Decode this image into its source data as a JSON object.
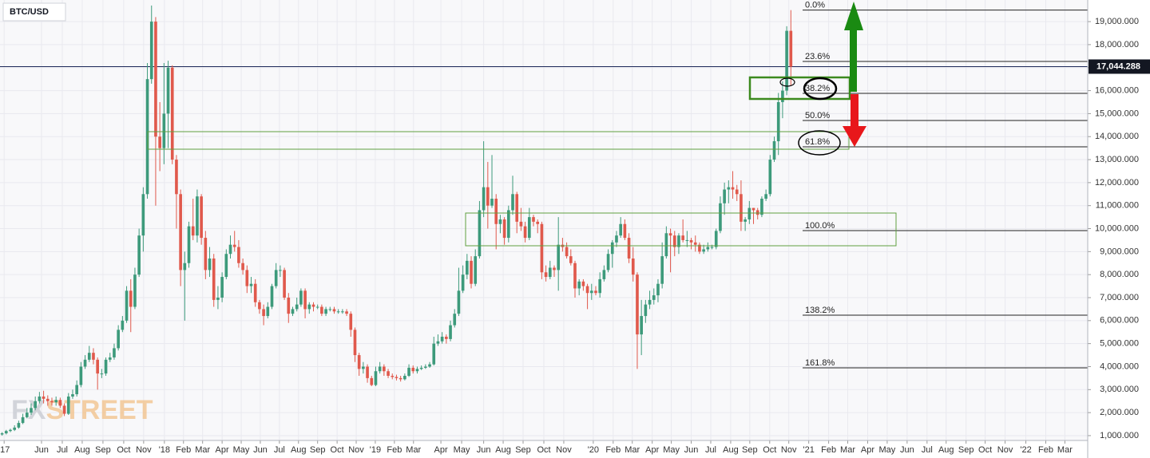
{
  "chart_data": {
    "type": "candlestick",
    "title": "BTC/USD",
    "watermark": [
      "FX",
      "STREET"
    ],
    "up_color": "#3d9a7b",
    "down_color": "#e0594c",
    "grid": true,
    "open": [
      1050,
      1100,
      1200,
      1250,
      1350,
      1550,
      1800,
      2000,
      2200,
      2500,
      2700,
      2600,
      2500,
      2450,
      2550,
      2300,
      1950,
      2700,
      2800,
      3200,
      4000,
      4300,
      4600,
      4300,
      3700,
      3700,
      4300,
      4400,
      4800,
      5600,
      6000,
      7300,
      6600,
      8000,
      9700,
      11500,
      16500,
      19000,
      14000,
      13500,
      15000,
      17000,
      13000,
      11500,
      8200,
      8500,
      10100,
      9700,
      11400,
      9600,
      8200,
      8700,
      6900,
      7000,
      7900,
      8900,
      9300,
      9200,
      8500,
      8200,
      7500,
      7600,
      6800,
      6500,
      6200,
      6600,
      7500,
      8200,
      8200,
      7000,
      6300,
      6500,
      6700,
      7300,
      6500,
      6700,
      6600,
      6600,
      6300,
      6500,
      6500,
      6400,
      6400,
      6400,
      6300,
      5600,
      4500,
      3900,
      4000,
      3500,
      3200,
      3800,
      4000,
      3800,
      3600,
      3550,
      3500,
      3450,
      3600,
      3950,
      3800,
      3900,
      3950,
      4000,
      4100,
      5000,
      5100,
      5300,
      5200,
      5800,
      6300,
      7300,
      8000,
      8600,
      7600,
      8800,
      10800,
      11800,
      11000,
      11300,
      10200,
      10400,
      9600,
      10800,
      11500,
      10300,
      10100,
      9600,
      10500,
      10300,
      10200,
      8100,
      7900,
      8300,
      8200,
      9300,
      9200,
      8800,
      8500,
      7400,
      7700,
      7500,
      7200,
      7300,
      7200,
      7800,
      8200,
      8900,
      9400,
      9700,
      10200,
      9600,
      8700,
      8000,
      5400,
      6200,
      6700,
      6900,
      7100,
      7600,
      8800,
      9800,
      9700,
      9200,
      9700,
      9500,
      9500,
      9400,
      9300,
      9000,
      9100,
      9200,
      9200,
      9900,
      11100,
      11700,
      11800,
      11700,
      11500,
      10300,
      10400,
      10900,
      10800,
      10600,
      11300,
      11500,
      13000,
      13800,
      15500,
      16000,
      18600
    ],
    "high": [
      1150,
      1250,
      1300,
      1450,
      1650,
      1950,
      2200,
      2400,
      2700,
      2900,
      2950,
      2750,
      2650,
      2700,
      2650,
      2400,
      2850,
      3000,
      3400,
      4200,
      4500,
      4900,
      4800,
      4400,
      3900,
      4400,
      4600,
      5000,
      5800,
      6200,
      7500,
      7800,
      8300,
      10000,
      11800,
      17200,
      19700,
      19200,
      15500,
      17200,
      17300,
      17100,
      13200,
      11700,
      9000,
      10300,
      11300,
      11700,
      11500,
      9900,
      9200,
      8900,
      7500,
      8100,
      9100,
      9700,
      9900,
      9500,
      8700,
      8400,
      7900,
      7800,
      6900,
      6700,
      6800,
      7600,
      8500,
      8400,
      8300,
      7200,
      6600,
      7000,
      7400,
      7400,
      6800,
      6800,
      6700,
      6700,
      6600,
      6600,
      6600,
      6500,
      6500,
      6500,
      6400,
      5700,
      4600,
      4200,
      4100,
      3600,
      4000,
      4200,
      4100,
      3900,
      3700,
      3650,
      3600,
      3700,
      4100,
      4050,
      4000,
      4050,
      4100,
      4200,
      5300,
      5400,
      5500,
      5400,
      6000,
      6500,
      8300,
      8400,
      8900,
      8800,
      9100,
      11200,
      13800,
      12900,
      13200,
      11500,
      10600,
      10500,
      11000,
      12300,
      11600,
      10900,
      10300,
      10900,
      10600,
      10400,
      10300,
      8400,
      8600,
      8400,
      10500,
      9600,
      9400,
      9100,
      8600,
      7800,
      7800,
      7600,
      7600,
      7500,
      8100,
      8400,
      9100,
      9500,
      9900,
      10500,
      10400,
      9800,
      9200,
      8100,
      6900,
      6900,
      7300,
      7400,
      7800,
      9400,
      10100,
      10000,
      9900,
      9800,
      10400,
      9900,
      9600,
      9700,
      9400,
      9300,
      9400,
      9300,
      10000,
      11400,
      12000,
      12100,
      12500,
      11900,
      12100,
      10500,
      11200,
      10900,
      10900,
      11400,
      11700,
      13200,
      14000,
      15900,
      16400,
      18800,
      19500
    ],
    "low": [
      1000,
      1050,
      1150,
      1200,
      1300,
      1500,
      1750,
      1900,
      2100,
      2400,
      2400,
      2300,
      2300,
      2300,
      2200,
      1850,
      1900,
      2600,
      2700,
      3100,
      3900,
      4200,
      4100,
      3000,
      3500,
      3600,
      4200,
      4300,
      4700,
      5500,
      5900,
      5500,
      6500,
      7900,
      9000,
      11300,
      16300,
      11000,
      12500,
      12800,
      13500,
      12800,
      10000,
      7500,
      6000,
      8300,
      9500,
      9400,
      9300,
      7800,
      7900,
      6600,
      6500,
      6800,
      7800,
      8700,
      9000,
      8300,
      8000,
      7200,
      7200,
      6600,
      6300,
      5800,
      6100,
      6500,
      7400,
      7900,
      6900,
      5900,
      6200,
      6400,
      6600,
      6100,
      6300,
      6400,
      6500,
      6200,
      6200,
      6400,
      6300,
      6300,
      6300,
      6200,
      5300,
      4200,
      3600,
      3700,
      3300,
      3150,
      3150,
      3700,
      3600,
      3500,
      3450,
      3400,
      3350,
      3400,
      3550,
      3700,
      3700,
      3850,
      3900,
      3950,
      4050,
      4900,
      5000,
      5000,
      5100,
      5700,
      6200,
      7200,
      7800,
      7400,
      7500,
      8700,
      10500,
      10000,
      10900,
      9100,
      9800,
      9300,
      9400,
      10600,
      9800,
      9900,
      9400,
      9500,
      10100,
      9800,
      7800,
      7700,
      7800,
      7900,
      7300,
      9000,
      8700,
      8400,
      7000,
      7100,
      7300,
      6500,
      6900,
      7100,
      7000,
      7700,
      8100,
      8300,
      9200,
      9600,
      9500,
      8500,
      7700,
      3900,
      4500,
      5900,
      6500,
      6700,
      6800,
      7400,
      8700,
      8100,
      8800,
      8900,
      9400,
      9200,
      9100,
      9000,
      8900,
      8900,
      9000,
      9100,
      9100,
      9800,
      10600,
      11100,
      11300,
      11200,
      9900,
      9900,
      10200,
      10200,
      10400,
      10500,
      11200,
      11400,
      12900,
      13200,
      14800,
      15800,
      16200
    ],
    "close": [
      1100,
      1200,
      1250,
      1350,
      1550,
      1800,
      2000,
      2200,
      2500,
      2700,
      2600,
      2500,
      2450,
      2550,
      2300,
      1950,
      2700,
      2800,
      3200,
      4000,
      4300,
      4600,
      4300,
      3700,
      3700,
      4300,
      4400,
      4800,
      5600,
      6000,
      7300,
      6600,
      8000,
      9700,
      11500,
      16500,
      19000,
      14000,
      13500,
      15000,
      17000,
      13000,
      11500,
      8200,
      8500,
      10100,
      9700,
      11400,
      9600,
      8200,
      8700,
      6900,
      7000,
      7900,
      8900,
      9300,
      9200,
      8500,
      8200,
      7500,
      7600,
      6800,
      6500,
      6200,
      6600,
      7500,
      8200,
      8200,
      7000,
      6300,
      6500,
      6700,
      7300,
      6500,
      6700,
      6600,
      6600,
      6300,
      6500,
      6500,
      6400,
      6400,
      6400,
      6300,
      5600,
      4500,
      3900,
      4000,
      3500,
      3200,
      3800,
      4000,
      3800,
      3600,
      3550,
      3500,
      3450,
      3600,
      3950,
      3800,
      3900,
      3950,
      4000,
      4100,
      5000,
      5100,
      5300,
      5200,
      5800,
      6300,
      7300,
      8000,
      8600,
      7600,
      8800,
      10800,
      11800,
      11000,
      11300,
      10200,
      10400,
      9600,
      10800,
      11500,
      10300,
      10100,
      9600,
      10500,
      10300,
      10200,
      8100,
      7900,
      8300,
      8200,
      9300,
      9200,
      8800,
      8500,
      7400,
      7700,
      7500,
      7200,
      7300,
      7200,
      7800,
      8200,
      8900,
      9400,
      9700,
      10200,
      9600,
      8700,
      8000,
      5400,
      6200,
      6700,
      6900,
      7100,
      7600,
      8800,
      9800,
      9700,
      9200,
      9700,
      9500,
      9500,
      9400,
      9300,
      9000,
      9100,
      9200,
      9200,
      9900,
      11100,
      11700,
      11800,
      11700,
      11500,
      10300,
      10400,
      10900,
      10800,
      10600,
      11300,
      11500,
      13000,
      13800,
      15500,
      16000,
      18600,
      17044
    ],
    "xlim": [
      0,
      262
    ],
    "xticks": [
      {
        "value": 1.0,
        "label": "'17"
      },
      {
        "value": 10.0,
        "label": "Jun"
      },
      {
        "value": 15.0,
        "label": "Jul"
      },
      {
        "value": 19.8,
        "label": "Aug"
      },
      {
        "value": 24.8,
        "label": "Sep"
      },
      {
        "value": 29.8,
        "label": "Oct"
      },
      {
        "value": 34.6,
        "label": "Nov"
      },
      {
        "value": 39.6,
        "label": "'18"
      },
      {
        "value": 44.2,
        "label": "Feb"
      },
      {
        "value": 48.8,
        "label": "Mar"
      },
      {
        "value": 53.5,
        "label": "Apr"
      },
      {
        "value": 58.1,
        "label": "May"
      },
      {
        "value": 62.7,
        "label": "Jun"
      },
      {
        "value": 67.3,
        "label": "Jul"
      },
      {
        "value": 71.9,
        "label": "Aug"
      },
      {
        "value": 76.5,
        "label": "Sep"
      },
      {
        "value": 81.2,
        "label": "Oct"
      },
      {
        "value": 85.8,
        "label": "Nov"
      },
      {
        "value": 90.4,
        "label": "'19"
      },
      {
        "value": 95.0,
        "label": "Feb"
      },
      {
        "value": 99.6,
        "label": "Mar"
      },
      {
        "value": 106.2,
        "label": "Apr"
      },
      {
        "value": 111.2,
        "label": "May"
      },
      {
        "value": 116.5,
        "label": "Jun"
      },
      {
        "value": 121.2,
        "label": "Aug"
      },
      {
        "value": 126.0,
        "label": "Sep"
      },
      {
        "value": 131.0,
        "label": "Oct"
      },
      {
        "value": 135.8,
        "label": "Nov"
      },
      {
        "value": 142.9,
        "label": "'20"
      },
      {
        "value": 147.7,
        "label": "Feb"
      },
      {
        "value": 152.3,
        "label": "Mar"
      },
      {
        "value": 157.1,
        "label": "Apr"
      },
      {
        "value": 161.7,
        "label": "May"
      },
      {
        "value": 166.5,
        "label": "Jun"
      },
      {
        "value": 171.2,
        "label": "Jul"
      },
      {
        "value": 176.0,
        "label": "Aug"
      },
      {
        "value": 180.6,
        "label": "Sep"
      },
      {
        "value": 185.4,
        "label": "Oct"
      },
      {
        "value": 190.0,
        "label": "Nov"
      },
      {
        "value": 194.8,
        "label": "'21"
      },
      {
        "value": 199.6,
        "label": "Feb"
      },
      {
        "value": 204.2,
        "label": "Mar"
      },
      {
        "value": 209.0,
        "label": "Apr"
      },
      {
        "value": 213.7,
        "label": "May"
      },
      {
        "value": 218.5,
        "label": "Jun"
      },
      {
        "value": 223.3,
        "label": "Jul"
      },
      {
        "value": 227.9,
        "label": "Aug"
      },
      {
        "value": 232.7,
        "label": "Sep"
      },
      {
        "value": 237.3,
        "label": "Oct"
      },
      {
        "value": 242.1,
        "label": "Nov"
      },
      {
        "value": 247.1,
        "label": "'22"
      },
      {
        "value": 251.9,
        "label": "Feb"
      },
      {
        "value": 256.5,
        "label": "Mar"
      }
    ],
    "ylim": [
      790,
      19940
    ],
    "yticks": [
      {
        "value": 1000,
        "label": "1,000.000"
      },
      {
        "value": 2000,
        "label": "2,000.000"
      },
      {
        "value": 3000,
        "label": "3,000.000"
      },
      {
        "value": 4000,
        "label": "4,000.000"
      },
      {
        "value": 5000,
        "label": "5,000.000"
      },
      {
        "value": 6000,
        "label": "6,000.000"
      },
      {
        "value": 7000,
        "label": "7,000.000"
      },
      {
        "value": 8000,
        "label": "8,000.000"
      },
      {
        "value": 9000,
        "label": "9,000.000"
      },
      {
        "value": 10000,
        "label": "10,000.000"
      },
      {
        "value": 11000,
        "label": "11,000.000"
      },
      {
        "value": 12000,
        "label": "12,000.000"
      },
      {
        "value": 13000,
        "label": "13,000.000"
      },
      {
        "value": 14000,
        "label": "14,000.000"
      },
      {
        "value": 15000,
        "label": "15,000.000"
      },
      {
        "value": 16000,
        "label": "16,000.000"
      },
      {
        "value": 17000,
        "label": "17,000.000"
      },
      {
        "value": 18000,
        "label": "18,000.000"
      },
      {
        "value": 19000,
        "label": "19,000.000"
      }
    ],
    "last_price": {
      "value": 17044.288,
      "label": "17,044.288"
    },
    "fib_levels": [
      {
        "value": 19500,
        "label": "0.0%"
      },
      {
        "value": 17268,
        "label": "23.6%"
      },
      {
        "value": 15880,
        "label": "38.2%"
      },
      {
        "value": 14700,
        "label": "50.0%"
      },
      {
        "value": 13556,
        "label": "61.8%"
      },
      {
        "value": 9914,
        "label": "100.0%"
      },
      {
        "value": 6238,
        "label": "138.2%"
      },
      {
        "value": 3948,
        "label": "161.8%"
      }
    ]
  }
}
